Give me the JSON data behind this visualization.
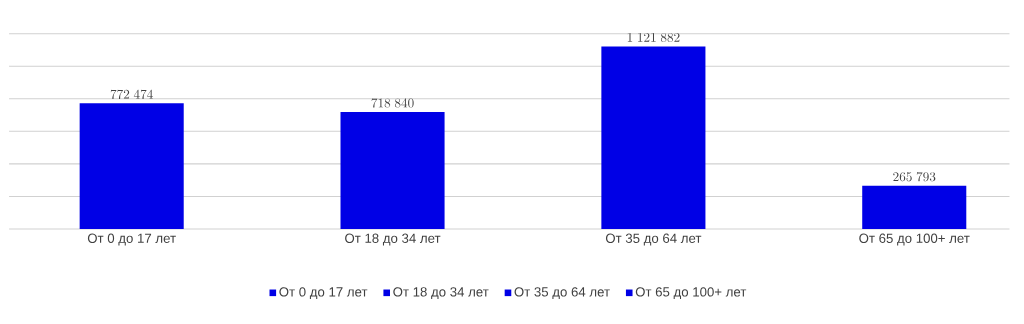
{
  "chart_data": {
    "type": "bar",
    "categories": [
      "От 0 до 17 лет",
      "От 18 до 34 лет",
      "От 35 до 64 лет",
      "От 65 до 100+ лет"
    ],
    "series": [
      {
        "name": "От 0 до 17 лет",
        "color": "#0000e6",
        "values": [
          772474,
          null,
          null,
          null
        ]
      },
      {
        "name": "От 18 до 34 лет",
        "color": "#0000e6",
        "values": [
          null,
          718840,
          null,
          null
        ]
      },
      {
        "name": "От 35 до 64 лет",
        "color": "#0000e6",
        "values": [
          null,
          null,
          1121882,
          null
        ]
      },
      {
        "name": "От 65 до 100+ лет",
        "color": "#0000e6",
        "values": [
          null,
          null,
          null,
          265793
        ]
      }
    ],
    "ylim": [
      0,
      1200000
    ],
    "yticks": [
      {
        "value": 0,
        "label": null
      },
      {
        "value": 200000,
        "label": null
      },
      {
        "value": 400000,
        "label": null
      },
      {
        "value": 600000,
        "label": null
      },
      {
        "value": 800000,
        "label": null
      },
      {
        "value": 1000000,
        "label": null
      },
      {
        "value": 1200000,
        "label": null
      }
    ],
    "grid": "y",
    "tick_labels": "x",
    "data_labels": true,
    "legend": "bottom"
  }
}
